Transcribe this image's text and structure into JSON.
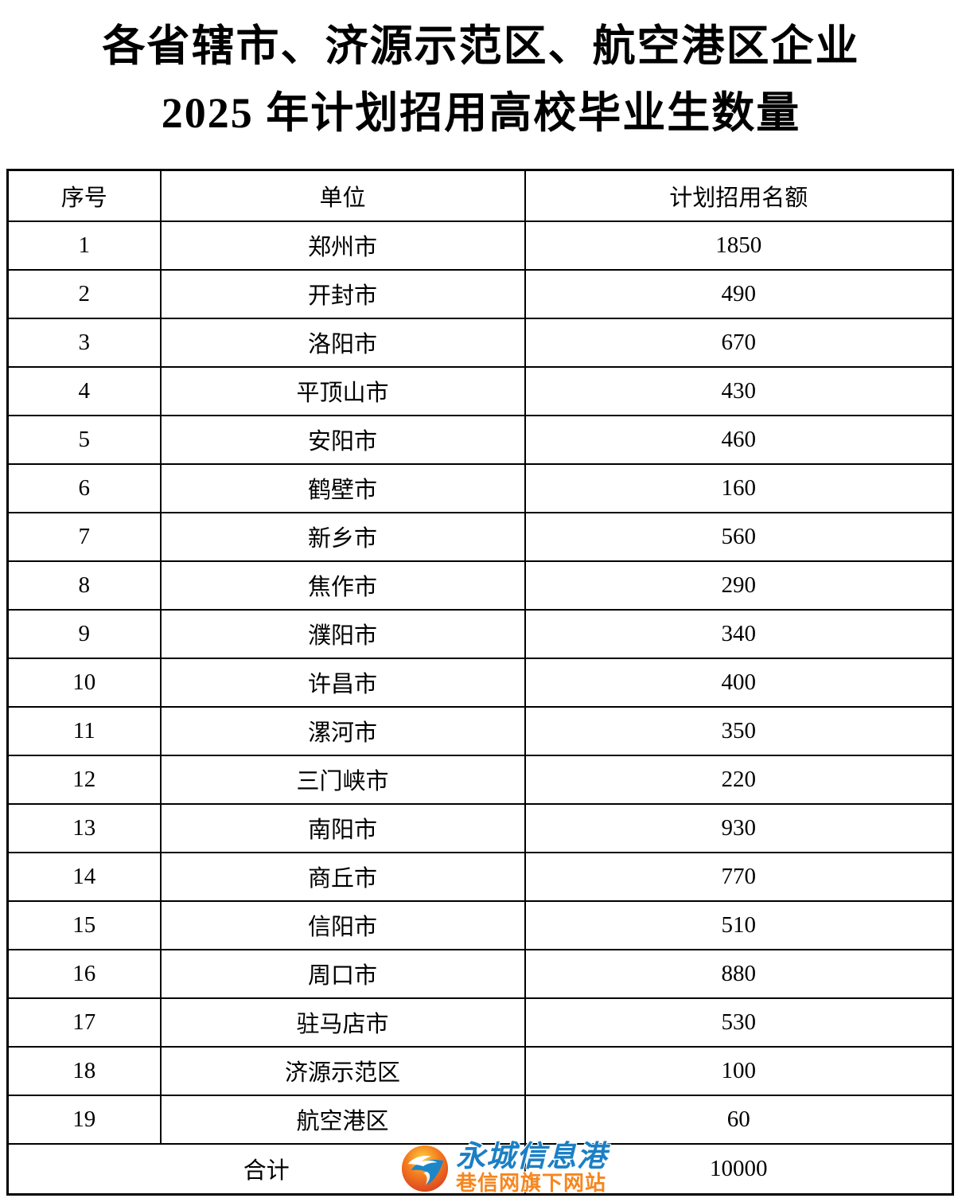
{
  "title": {
    "line1": "各省辖市、济源示范区、航空港区企业",
    "line2": "2025 年计划招用高校毕业生数量"
  },
  "table": {
    "headers": [
      "序号",
      "单位",
      "计划招用名额"
    ],
    "rows": [
      {
        "no": "1",
        "unit": "郑州市",
        "quota": "1850"
      },
      {
        "no": "2",
        "unit": "开封市",
        "quota": "490"
      },
      {
        "no": "3",
        "unit": "洛阳市",
        "quota": "670"
      },
      {
        "no": "4",
        "unit": "平顶山市",
        "quota": "430"
      },
      {
        "no": "5",
        "unit": "安阳市",
        "quota": "460"
      },
      {
        "no": "6",
        "unit": "鹤壁市",
        "quota": "160"
      },
      {
        "no": "7",
        "unit": "新乡市",
        "quota": "560"
      },
      {
        "no": "8",
        "unit": "焦作市",
        "quota": "290"
      },
      {
        "no": "9",
        "unit": "濮阳市",
        "quota": "340"
      },
      {
        "no": "10",
        "unit": "许昌市",
        "quota": "400"
      },
      {
        "no": "11",
        "unit": "漯河市",
        "quota": "350"
      },
      {
        "no": "12",
        "unit": "三门峡市",
        "quota": "220"
      },
      {
        "no": "13",
        "unit": "南阳市",
        "quota": "930"
      },
      {
        "no": "14",
        "unit": "商丘市",
        "quota": "770"
      },
      {
        "no": "15",
        "unit": "信阳市",
        "quota": "510"
      },
      {
        "no": "16",
        "unit": "周口市",
        "quota": "880"
      },
      {
        "no": "17",
        "unit": "驻马店市",
        "quota": "530"
      },
      {
        "no": "18",
        "unit": "济源示范区",
        "quota": "100"
      },
      {
        "no": "19",
        "unit": "航空港区",
        "quota": "60"
      }
    ],
    "total": {
      "label": "合计",
      "quota": "10000"
    }
  },
  "watermark": {
    "name": "永城信息港",
    "subtitle": "巷信网旗下网站",
    "name_color": "#1b7fc4",
    "subtitle_color": "#f6861f",
    "logo_colors": {
      "top": "#fcd23c",
      "mid": "#f47b20",
      "deep": "#d43a1f",
      "wave": "#1b86c8"
    }
  }
}
